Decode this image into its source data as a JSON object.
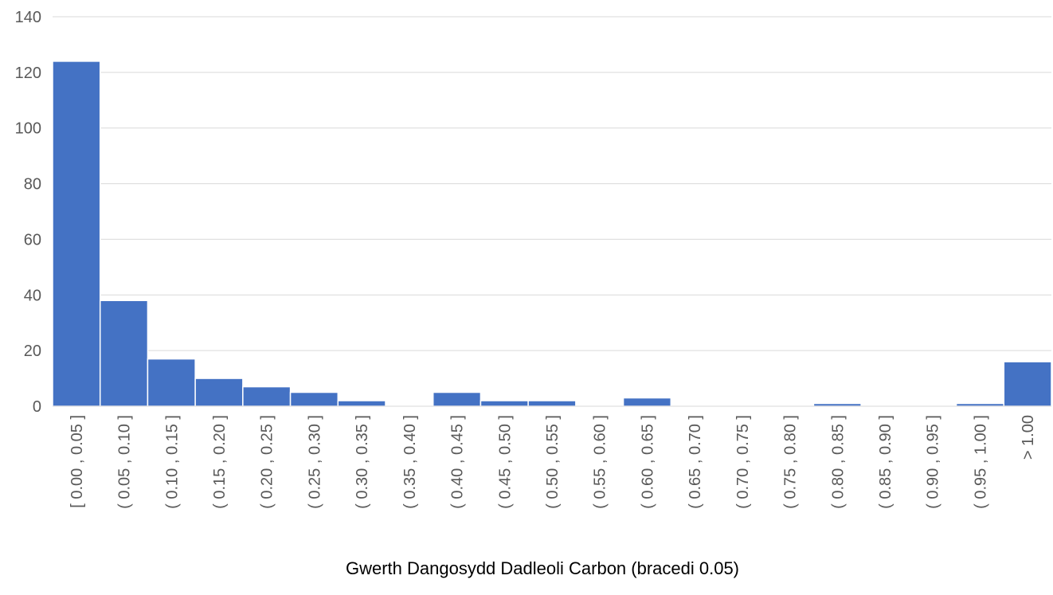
{
  "chart_data": {
    "type": "bar",
    "title": "",
    "xlabel": "Gwerth Dangosydd Dadleoli Carbon (bracedi 0.05)",
    "ylabel": "",
    "ylim": [
      0,
      140
    ],
    "yticks": [
      0,
      20,
      40,
      60,
      80,
      100,
      120,
      140
    ],
    "grid": true,
    "legend": "none",
    "bar_color": "#4472c4",
    "categories": [
      "[ 0.00 , 0.05 ]",
      "( 0.05 , 0.10 ]",
      "( 0.10 , 0.15 ]",
      "( 0.15 , 0.20 ]",
      "( 0.20 , 0.25 ]",
      "( 0.25 , 0.30 ]",
      "( 0.30 , 0.35 ]",
      "( 0.35 , 0.40 ]",
      "( 0.40 , 0.45 ]",
      "( 0.45 , 0.50 ]",
      "( 0.50 , 0.55 ]",
      "( 0.55 , 0.60 ]",
      "( 0.60 , 0.65 ]",
      "( 0.65 , 0.70 ]",
      "( 0.70 , 0.75 ]",
      "( 0.75 , 0.80 ]",
      "( 0.80 , 0.85 ]",
      "( 0.85 , 0.90 ]",
      "( 0.90 , 0.95 ]",
      "( 0.95 , 1.00 ]",
      "> 1.00"
    ],
    "values": [
      124,
      38,
      17,
      10,
      7,
      5,
      2,
      0,
      5,
      2,
      2,
      0,
      3,
      0,
      0,
      0,
      1,
      0,
      0,
      1,
      16
    ]
  }
}
